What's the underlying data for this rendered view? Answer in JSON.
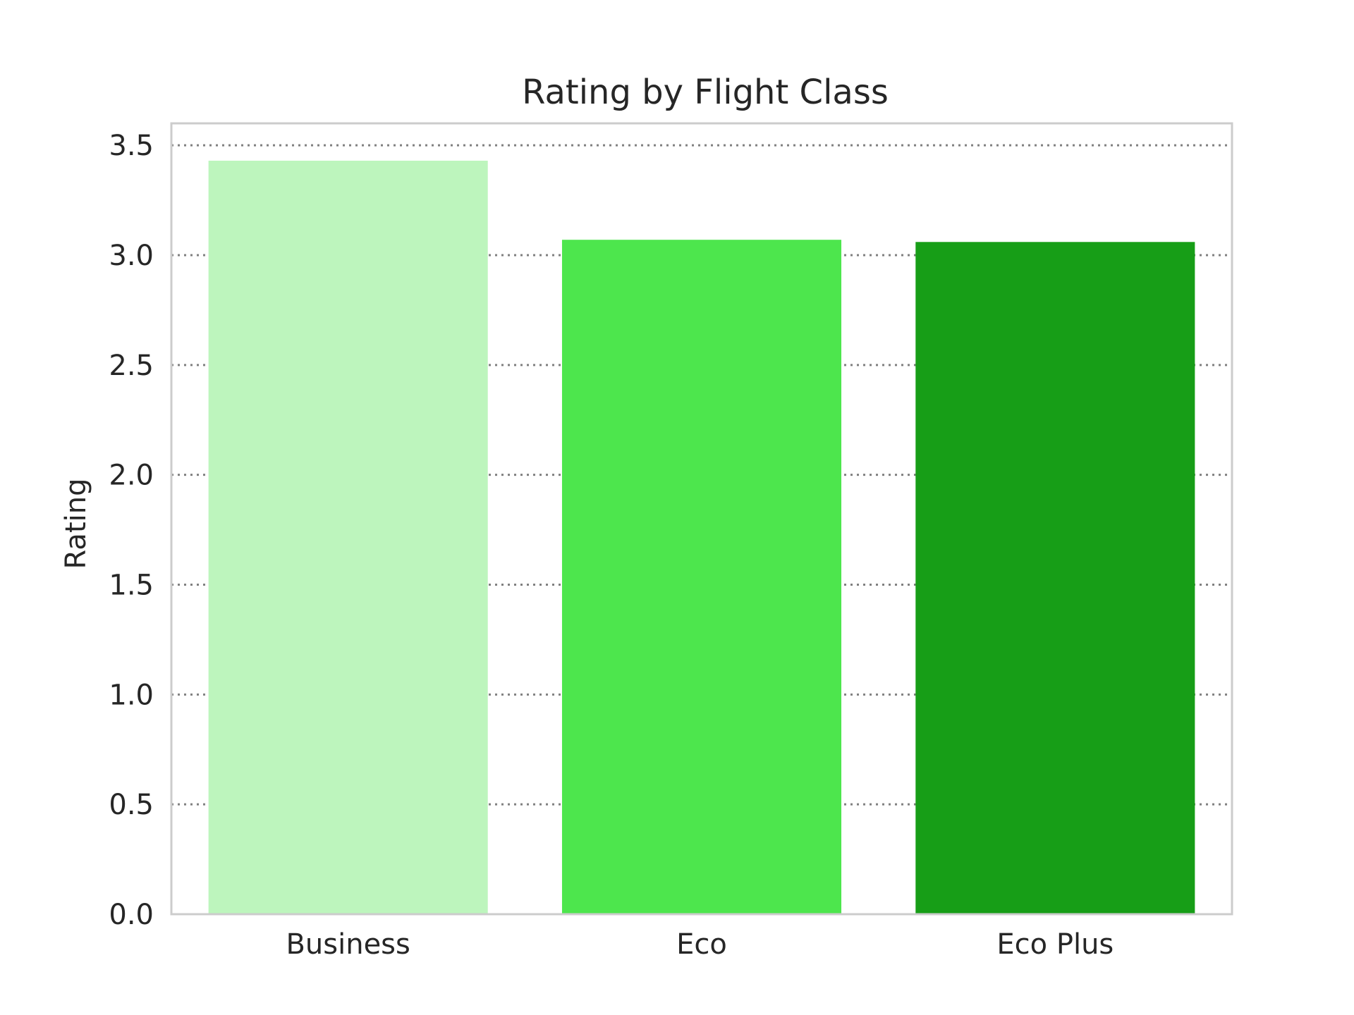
{
  "chart_data": {
    "type": "bar",
    "title": "Rating by Flight Class",
    "xlabel": "",
    "ylabel": "Rating",
    "categories": [
      "Business",
      "Eco",
      "Eco Plus"
    ],
    "values": [
      3.43,
      3.07,
      3.06
    ],
    "ylim": [
      0,
      3.6
    ],
    "yticks": [
      "0.0",
      "0.5",
      "1.0",
      "1.5",
      "2.0",
      "2.5",
      "3.0",
      "3.5"
    ],
    "grid": "horizontal dotted",
    "colors": [
      "#bdf5bd",
      "#4de64d",
      "#179e17"
    ],
    "frame_color": "#cccccc",
    "grid_color": "#808080"
  }
}
